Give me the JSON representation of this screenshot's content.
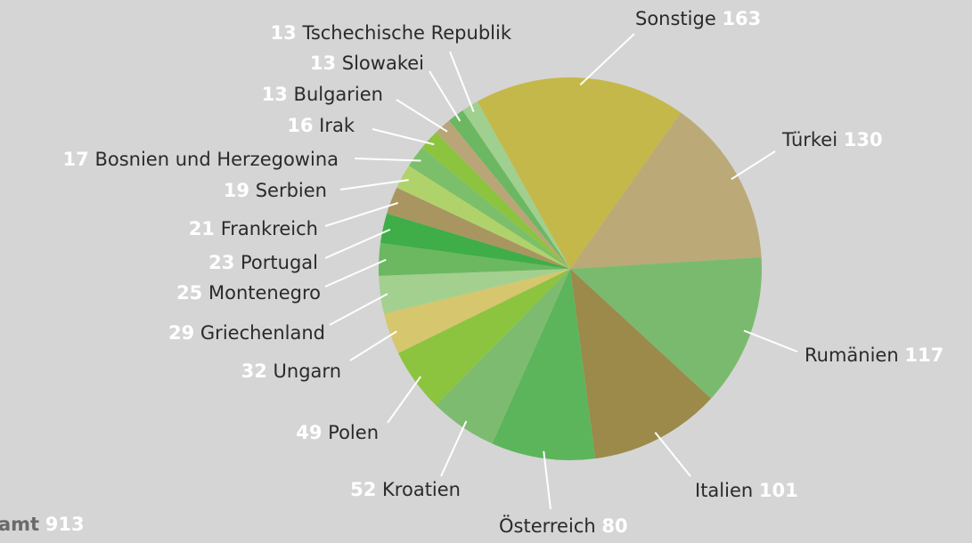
{
  "chart_data": {
    "type": "pie",
    "total_label": "amt",
    "total": 913,
    "categories": [
      "Sonstige",
      "Türkei",
      "Rumänien",
      "Italien",
      "Österreich",
      "Kroatien",
      "Polen",
      "Ungarn",
      "Griechenland",
      "Montenegro",
      "Portugal",
      "Frankreich",
      "Serbien",
      "Bosnien und Herzegowina",
      "Irak",
      "Bulgarien",
      "Slowakei",
      "Tschechische Republik"
    ],
    "values": [
      163,
      130,
      117,
      101,
      80,
      52,
      49,
      32,
      29,
      25,
      23,
      21,
      19,
      17,
      16,
      13,
      13,
      13
    ],
    "colors": [
      "#c4b84a",
      "#bba978",
      "#7aba6e",
      "#9b8a4a",
      "#5cb55a",
      "#7dbb70",
      "#8cc43f",
      "#d6c66e",
      "#a3d08e",
      "#6bb860",
      "#3fae48",
      "#a99560",
      "#b0d26b",
      "#7cbf6a",
      "#8cc43f",
      "#b9a577",
      "#6cb862",
      "#9fd08f"
    ]
  }
}
